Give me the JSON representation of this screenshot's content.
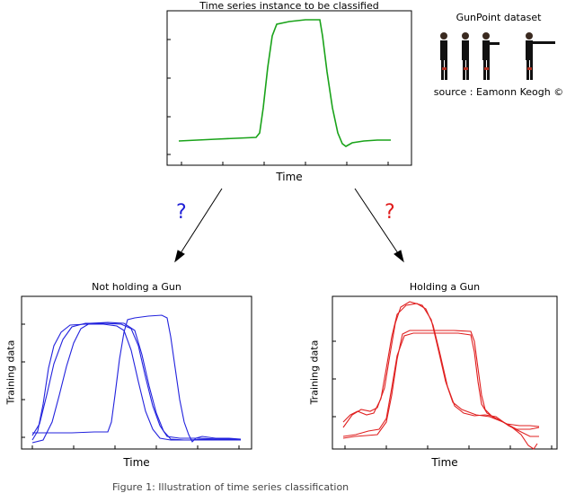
{
  "top_plot": {
    "title": "Time series instance to be classified",
    "xlabel": "Time",
    "color": "#1aa31a"
  },
  "dataset": {
    "title": "GunPoint dataset",
    "source": "source : Eamonn Keogh ©",
    "figure_icons": [
      "person-standing-icon",
      "person-standing-icon",
      "person-pointing-icon",
      "person-pointing-icon"
    ]
  },
  "arrows": {
    "left_q": "?",
    "left_q_color": "#1f1fd6",
    "right_q": "?",
    "right_q_color": "#e01b1b"
  },
  "left_plot": {
    "title": "Not holding a Gun",
    "xlabel": "Time",
    "ylabel": "Training data",
    "color": "#2222dd"
  },
  "right_plot": {
    "title": "Holding a Gun",
    "xlabel": "Time",
    "ylabel": "Training data",
    "color": "#e02020"
  },
  "caption": "Figure 1: Illustration of time series classification"
}
